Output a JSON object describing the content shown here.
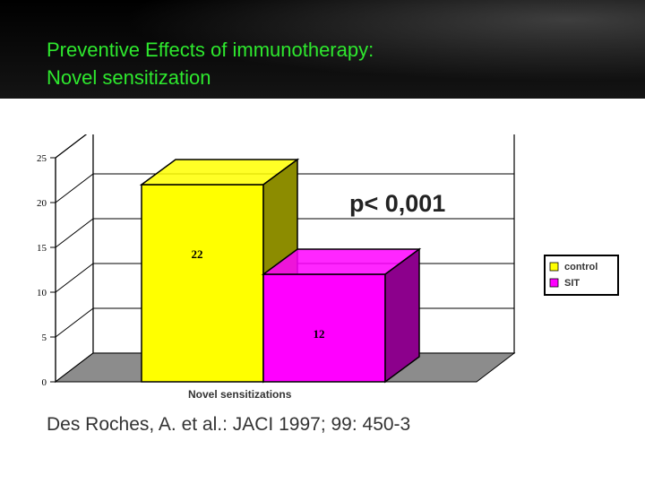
{
  "slide": {
    "title_line1": "Preventive Effects of immunotherapy:",
    "title_line2": "Novel sensitization",
    "citation": "Des Roches, A. et al.: JACI 1997; 99: 450-3"
  },
  "colors": {
    "title": "#2ee82e",
    "control": "#ffff00",
    "sit": "#ff00ff"
  },
  "chart_data": {
    "type": "bar",
    "categories": [
      "Novel sensitizations"
    ],
    "series": [
      {
        "name": "control",
        "values": [
          22
        ]
      },
      {
        "name": "SIT",
        "values": [
          12
        ]
      }
    ],
    "data_labels": [
      "22",
      "12"
    ],
    "xlabel": "Novel sensitizations",
    "ylabel": "",
    "ylim": [
      0,
      25
    ],
    "yticks": [
      0,
      5,
      10,
      15,
      20,
      25
    ],
    "annotation": "p< 0,001",
    "legend_position": "right",
    "grid": true,
    "style": "3d"
  }
}
